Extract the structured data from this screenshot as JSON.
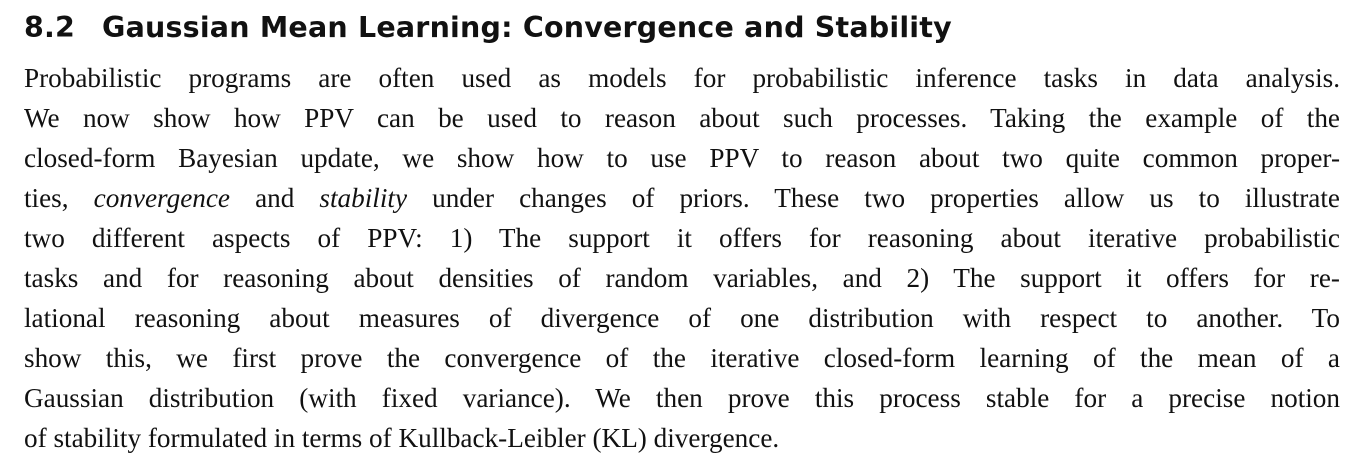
{
  "section": {
    "number": "8.2",
    "title": "Gaussian Mean Learning: Convergence and Stability"
  },
  "paragraph": {
    "lines": [
      {
        "text": "Probabilistic programs are often used as models for probabilistic inference tasks in data analysis."
      },
      {
        "text": "We now show how PPV can be used to reason about such processes. Taking the example of the"
      },
      {
        "text": "closed-form Bayesian update, we show how to use PPV to reason about two quite common proper-"
      },
      {
        "before": "ties, ",
        "em1": "convergence",
        "middle": " and ",
        "em2": "stability",
        "after": " under changes of priors. These two properties allow us to illustrate"
      },
      {
        "text": "two different aspects of PPV: 1) The support it offers for reasoning about iterative probabilistic"
      },
      {
        "text": "tasks and for reasoning about densities of random variables, and 2) The support it offers for re-"
      },
      {
        "text": "lational reasoning about measures of divergence of one distribution with respect to another. To"
      },
      {
        "text": "show this, we first prove the convergence of the iterative closed-form learning of the mean of a"
      },
      {
        "text": "Gaussian distribution (with fixed variance). We then prove this process stable for a precise notion"
      },
      {
        "text": "of stability formulated in terms of Kullback-Leibler (KL) divergence."
      }
    ]
  }
}
